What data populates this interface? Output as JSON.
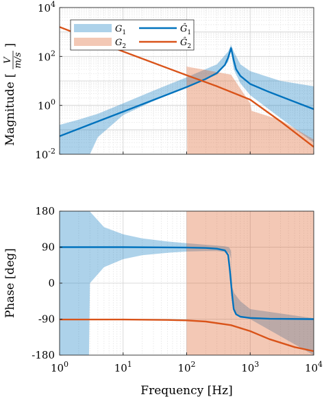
{
  "chart_data": [
    {
      "type": "line",
      "panel": "magnitude",
      "xscale": "log",
      "yscale": "log",
      "xlim": [
        1,
        10000
      ],
      "ylim": [
        0.01,
        10000
      ],
      "xlabel": "",
      "ylabel": "Magnitude [V/(m/s)]",
      "ylabel_parts": {
        "main": "Magnitude",
        "num": "V",
        "den": "m/s"
      },
      "yticks": [
        {
          "base": "10",
          "exp": "-2"
        },
        {
          "base": "10",
          "exp": "0"
        },
        {
          "base": "10",
          "exp": "2"
        },
        {
          "base": "10",
          "exp": "4"
        }
      ],
      "grid": true,
      "legend": {
        "placement": "top-left",
        "entries": [
          {
            "kind": "band",
            "label": "G",
            "sub": "1",
            "color": "#0072BD"
          },
          {
            "kind": "line",
            "label": "Ĝ",
            "sub": "1",
            "color": "#0072BD"
          },
          {
            "kind": "band",
            "label": "G",
            "sub": "2",
            "color": "#D95319"
          },
          {
            "kind": "line",
            "label": "Ĝ",
            "sub": "2",
            "color": "#D95319"
          }
        ]
      },
      "series": [
        {
          "style": "band",
          "color": "#0072BD",
          "x": [
            1,
            2,
            3,
            4,
            10,
            30,
            100,
            300,
            450,
            500,
            550,
            700,
            1000,
            3000,
            10000
          ],
          "upper": [
            0.16,
            0.26,
            0.36,
            0.45,
            1.2,
            4.0,
            14,
            48,
            160,
            300,
            160,
            48,
            25,
            10,
            6
          ],
          "lower": [
            0.01,
            0.01,
            0.01,
            0.05,
            0.4,
            1.5,
            5.5,
            18,
            60,
            180,
            30,
            8,
            2.6,
            0.3,
            0.03
          ]
        },
        {
          "style": "band",
          "color": "#D95319",
          "x": [
            1,
            10,
            30,
            100,
            102,
            200,
            500,
            1000,
            1050,
            3000,
            10000
          ],
          "upper": [
            1200,
            250,
            100,
            40,
            38,
            28,
            18,
            1.2,
            0.6,
            0.25,
            0.04
          ],
          "lower": [
            1200,
            250,
            100,
            40,
            0.01,
            0.01,
            0.01,
            0.01,
            0.01,
            0.01,
            0.01
          ]
        },
        {
          "style": "line",
          "color": "#0072BD",
          "x": [
            1,
            10,
            100,
            200,
            300,
            400,
            450,
            500,
            550,
            600,
            700,
            1000,
            2000,
            5000,
            10000
          ],
          "y": [
            0.055,
            0.55,
            5.6,
            12,
            21,
            45,
            90,
            220,
            70,
            30,
            16,
            7.5,
            3.5,
            1.4,
            0.7
          ]
        },
        {
          "style": "line",
          "color": "#D95319",
          "x": [
            1,
            10,
            100,
            300,
            1000,
            3000,
            10000
          ],
          "y": [
            1600,
            160,
            17,
            6,
            1.7,
            0.22,
            0.02
          ]
        }
      ]
    },
    {
      "type": "line",
      "panel": "phase",
      "xscale": "log",
      "xlim": [
        1,
        10000
      ],
      "ylim": [
        -180,
        180
      ],
      "xlabel": "Frequency [Hz]",
      "ylabel": "Phase [deg]",
      "xticks": [
        {
          "base": "10",
          "exp": "0"
        },
        {
          "base": "10",
          "exp": "1"
        },
        {
          "base": "10",
          "exp": "2"
        },
        {
          "base": "10",
          "exp": "3"
        },
        {
          "base": "10",
          "exp": "4"
        }
      ],
      "yticks": [
        -180,
        -90,
        0,
        90,
        180
      ],
      "grid": true,
      "series": [
        {
          "style": "band",
          "color": "#0072BD",
          "x": [
            1,
            2.9,
            3,
            5,
            10,
            20,
            50,
            100,
            200,
            300,
            400,
            460,
            480,
            500,
            520,
            560,
            700,
            1000,
            10000
          ],
          "upper": [
            180,
            180,
            179,
            140,
            122,
            112,
            104,
            100,
            96,
            94,
            92,
            90,
            86,
            80,
            -10,
            -25,
            -45,
            -65,
            -88
          ],
          "lower": [
            -180,
            -180,
            0,
            40,
            60,
            70,
            76,
            79,
            80,
            80,
            78,
            76,
            70,
            60,
            -45,
            -72,
            -85,
            -90,
            -180
          ]
        },
        {
          "style": "band",
          "color": "#D95319",
          "x": [
            100,
            200,
            500,
            1000,
            2000,
            10000
          ],
          "upper": [
            180,
            180,
            180,
            180,
            180,
            180
          ],
          "lower": [
            -180,
            -180,
            -180,
            -180,
            -180,
            -180
          ]
        },
        {
          "style": "line",
          "color": "#0072BD",
          "x": [
            1,
            10,
            100,
            200,
            300,
            400,
            450,
            480,
            500,
            520,
            550,
            600,
            700,
            1000,
            2000,
            10000
          ],
          "y": [
            90,
            90,
            89,
            88,
            86,
            82,
            70,
            30,
            0,
            -30,
            -65,
            -78,
            -84,
            -87,
            -89,
            -90
          ]
        },
        {
          "style": "line",
          "color": "#D95319",
          "x": [
            1,
            10,
            50,
            100,
            200,
            500,
            1000,
            2000,
            5000,
            10000
          ],
          "y": [
            -91,
            -91,
            -92,
            -93,
            -96,
            -105,
            -120,
            -140,
            -160,
            -170
          ]
        }
      ]
    }
  ]
}
